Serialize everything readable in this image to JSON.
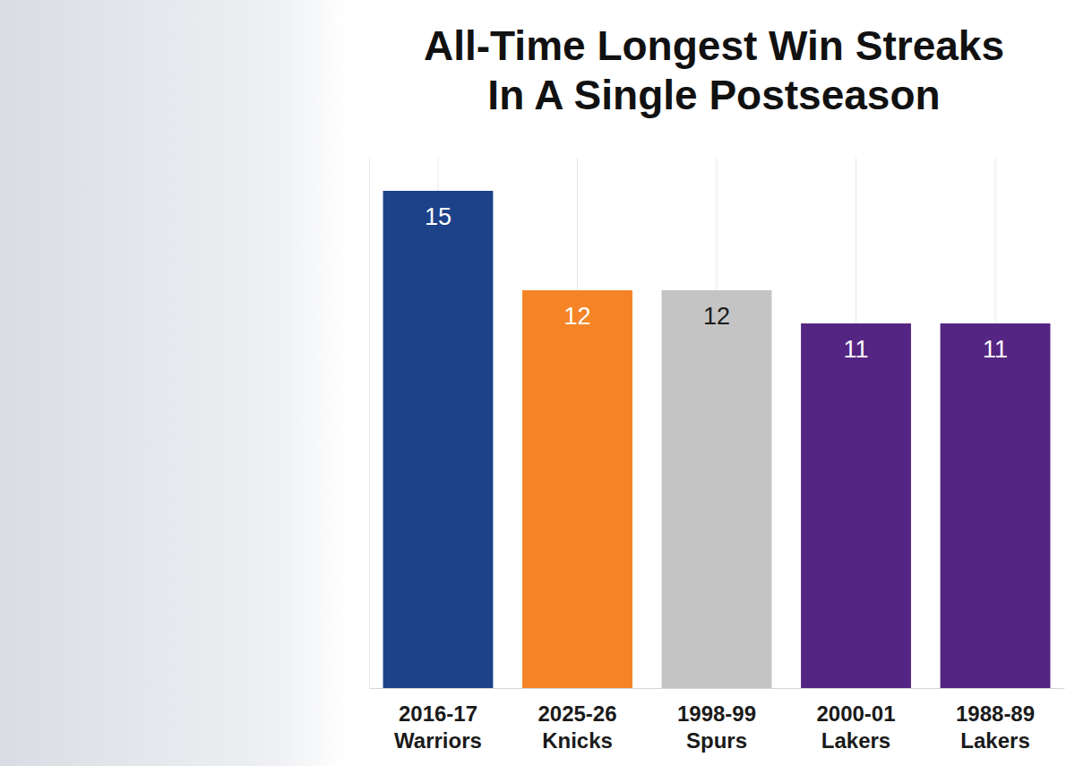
{
  "chart_data": {
    "type": "bar",
    "title": "All-Time Longest Win Streaks In A Single Postseason",
    "categories": [
      "2016-17 Warriors",
      "2025-26 Knicks",
      "1998-99 Spurs",
      "2000-01 Lakers",
      "1988-89 Lakers"
    ],
    "values": [
      15,
      12,
      12,
      11,
      11
    ],
    "colors": [
      "#1d428a",
      "#f58426",
      "#c4c4c4",
      "#552583",
      "#552583"
    ],
    "ylim": [
      0,
      16
    ],
    "grid": true,
    "data_labels": true,
    "tick_labels": "x"
  }
}
